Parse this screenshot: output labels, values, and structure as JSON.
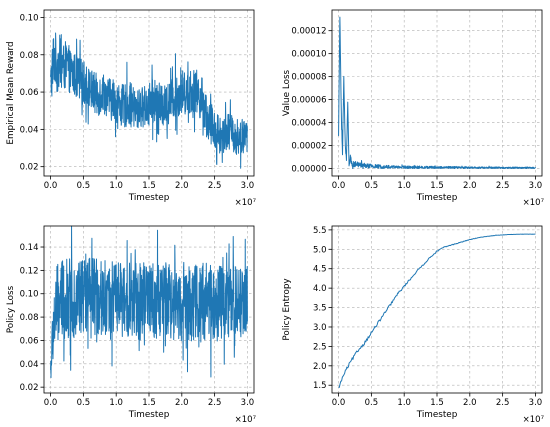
{
  "colors": {
    "series": "#1f77b4",
    "frame": "#000000",
    "grid": "#b0b0b0"
  },
  "chart_data": [
    {
      "id": "reward",
      "type": "line",
      "xlabel": "Timestep",
      "ylabel": "Empirical Mean Reward",
      "x_offset_label": "×10⁷",
      "xlim": [
        -0.1,
        3.1
      ],
      "ylim": [
        0.015,
        0.104
      ],
      "xticks": [
        0.0,
        0.5,
        1.0,
        1.5,
        2.0,
        2.5,
        3.0
      ],
      "xtick_labels": [
        "0.0",
        "0.5",
        "1.0",
        "1.5",
        "2.0",
        "2.5",
        "3.0"
      ],
      "yticks": [
        0.02,
        0.04,
        0.06,
        0.08,
        0.1
      ],
      "ytick_labels": [
        "0.02",
        "0.04",
        "0.06",
        "0.08",
        "0.10"
      ],
      "grid": true,
      "series": [
        {
          "x": [
            0,
            0.05,
            0.1,
            0.15,
            0.2,
            0.25,
            0.3,
            0.4,
            0.5,
            0.6,
            0.7,
            0.8,
            0.9,
            1.0,
            1.1,
            1.2,
            1.3,
            1.4,
            1.5,
            1.6,
            1.7,
            1.8,
            1.9,
            2.0,
            2.1,
            2.2,
            2.3,
            2.4,
            2.5,
            2.6,
            2.7,
            2.8,
            2.9,
            3.0
          ],
          "y": [
            0.063,
            0.08,
            0.074,
            0.077,
            0.073,
            0.075,
            0.071,
            0.068,
            0.065,
            0.062,
            0.058,
            0.06,
            0.056,
            0.055,
            0.052,
            0.054,
            0.05,
            0.052,
            0.053,
            0.056,
            0.052,
            0.054,
            0.058,
            0.06,
            0.059,
            0.061,
            0.057,
            0.045,
            0.04,
            0.036,
            0.04,
            0.036,
            0.035,
            0.037
          ],
          "amplitude": [
            0.012,
            0.016,
            0.015,
            0.014,
            0.013,
            0.013,
            0.012,
            0.012,
            0.012,
            0.011,
            0.012,
            0.011,
            0.011,
            0.011,
            0.012,
            0.012,
            0.011,
            0.011,
            0.012,
            0.012,
            0.011,
            0.011,
            0.012,
            0.012,
            0.011,
            0.012,
            0.012,
            0.012,
            0.011,
            0.01,
            0.01,
            0.01,
            0.009,
            0.009
          ]
        }
      ]
    },
    {
      "id": "value-loss",
      "type": "line",
      "xlabel": "Timestep",
      "ylabel": "Value Loss",
      "x_offset_label": "×10⁷",
      "xlim": [
        -0.1,
        3.1
      ],
      "ylim": [
        -6.5e-06,
        0.000138
      ],
      "xticks": [
        0.0,
        0.5,
        1.0,
        1.5,
        2.0,
        2.5,
        3.0
      ],
      "xtick_labels": [
        "0.0",
        "0.5",
        "1.0",
        "1.5",
        "2.0",
        "2.5",
        "3.0"
      ],
      "yticks": [
        0,
        2e-05,
        4e-05,
        6e-05,
        8e-05,
        0.0001,
        0.00012
      ],
      "ytick_labels": [
        "0.00000",
        "0.00002",
        "0.00004",
        "0.00006",
        "0.00008",
        "0.00010",
        "0.00012"
      ],
      "grid": true,
      "series": [
        {
          "x": [
            0,
            0.02,
            0.04,
            0.06,
            0.08,
            0.1,
            0.12,
            0.14,
            0.16,
            0.18,
            0.2,
            0.3,
            0.5,
            0.75,
            1.0,
            1.5,
            2.0,
            2.5,
            3.0
          ],
          "y": [
            3e-05,
            0.000132,
            5.5e-05,
            1.2e-05,
            7.8e-05,
            2.5e-05,
            8e-06,
            5.6e-05,
            4e-06,
            9e-06,
            4e-06,
            3.5e-06,
            2e-06,
            1.5e-06,
            1.2e-06,
            1e-06,
            8e-07,
            7e-07,
            6e-07
          ],
          "amplitude": [
            2e-06,
            2e-06,
            4e-06,
            4e-06,
            3e-06,
            4e-06,
            3e-06,
            3e-06,
            3e-06,
            3e-06,
            2.5e-06,
            2.2e-06,
            1.8e-06,
            1.4e-06,
            1.2e-06,
            1e-06,
            8e-07,
            7e-07,
            6e-07
          ]
        }
      ]
    },
    {
      "id": "policy-loss",
      "type": "line",
      "xlabel": "Timestep",
      "ylabel": "Policy Loss",
      "x_offset_label": "×10⁷",
      "xlim": [
        -0.1,
        3.1
      ],
      "ylim": [
        0.015,
        0.158
      ],
      "xticks": [
        0.0,
        0.5,
        1.0,
        1.5,
        2.0,
        2.5,
        3.0
      ],
      "xtick_labels": [
        "0.0",
        "0.5",
        "1.0",
        "1.5",
        "2.0",
        "2.5",
        "3.0"
      ],
      "yticks": [
        0.02,
        0.04,
        0.06,
        0.08,
        0.1,
        0.12,
        0.14
      ],
      "ytick_labels": [
        "0.02",
        "0.04",
        "0.06",
        "0.08",
        "0.10",
        "0.12",
        "0.14"
      ],
      "grid": true,
      "series": [
        {
          "x": [
            0,
            0.05,
            0.1,
            0.2,
            0.3,
            0.5,
            0.75,
            1.0,
            1.25,
            1.5,
            1.75,
            2.0,
            2.25,
            2.5,
            2.75,
            3.0
          ],
          "y": [
            0.035,
            0.075,
            0.09,
            0.095,
            0.095,
            0.098,
            0.097,
            0.096,
            0.095,
            0.094,
            0.095,
            0.093,
            0.092,
            0.093,
            0.092,
            0.093
          ],
          "amplitude": [
            0.012,
            0.03,
            0.035,
            0.035,
            0.035,
            0.034,
            0.033,
            0.032,
            0.032,
            0.033,
            0.033,
            0.034,
            0.034,
            0.034,
            0.033,
            0.032
          ]
        }
      ]
    },
    {
      "id": "policy-entropy",
      "type": "line",
      "xlabel": "Timestep",
      "ylabel": "Policy Entropy",
      "x_offset_label": "×10⁷",
      "xlim": [
        -0.1,
        3.1
      ],
      "ylim": [
        1.3,
        5.6
      ],
      "xticks": [
        0.0,
        0.5,
        1.0,
        1.5,
        2.0,
        2.5,
        3.0
      ],
      "xtick_labels": [
        "0.0",
        "0.5",
        "1.0",
        "1.5",
        "2.0",
        "2.5",
        "3.0"
      ],
      "yticks": [
        1.5,
        2.0,
        2.5,
        3.0,
        3.5,
        4.0,
        4.5,
        5.0,
        5.5
      ],
      "ytick_labels": [
        "1.5",
        "2.0",
        "2.5",
        "3.0",
        "3.5",
        "4.0",
        "4.5",
        "5.0",
        "5.5"
      ],
      "grid": true,
      "series": [
        {
          "x": [
            0,
            0.05,
            0.1,
            0.2,
            0.3,
            0.4,
            0.5,
            0.6,
            0.7,
            0.8,
            0.9,
            1.0,
            1.1,
            1.2,
            1.3,
            1.4,
            1.5,
            1.6,
            1.8,
            2.0,
            2.2,
            2.4,
            2.6,
            2.8,
            3.0
          ],
          "y": [
            1.42,
            1.65,
            1.85,
            2.15,
            2.4,
            2.6,
            2.85,
            3.1,
            3.35,
            3.6,
            3.85,
            4.05,
            4.25,
            4.45,
            4.62,
            4.8,
            4.95,
            5.05,
            5.15,
            5.25,
            5.32,
            5.36,
            5.38,
            5.39,
            5.39
          ],
          "amplitude": [
            0.03,
            0.04,
            0.04,
            0.04,
            0.04,
            0.04,
            0.04,
            0.035,
            0.035,
            0.03,
            0.03,
            0.025,
            0.025,
            0.02,
            0.02,
            0.015,
            0.015,
            0.01,
            0.01,
            0.008,
            0.006,
            0.004,
            0.003,
            0.002,
            0.002
          ]
        }
      ]
    }
  ]
}
